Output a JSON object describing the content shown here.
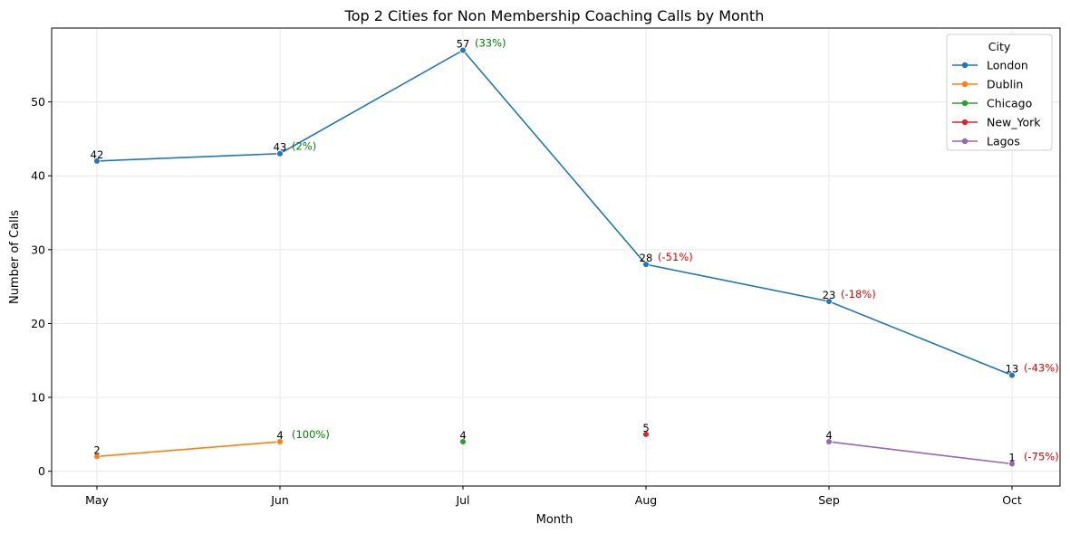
{
  "chart_data": {
    "type": "line",
    "title": "Top 2 Cities for Non Membership Coaching Calls by Month",
    "xlabel": "Month",
    "ylabel": "Number of Calls",
    "categories": [
      "May",
      "Jun",
      "Jul",
      "Aug",
      "Sep",
      "Oct"
    ],
    "yticks": [
      0,
      10,
      20,
      30,
      40,
      50
    ],
    "ylim": [
      -2,
      60
    ],
    "grid": true,
    "legend": {
      "title": "City",
      "position": "top-right"
    },
    "series": [
      {
        "name": "London",
        "color": "#1f77b4",
        "points": [
          {
            "x": "May",
            "y": 42,
            "label": "42",
            "pct": ""
          },
          {
            "x": "Jun",
            "y": 43,
            "label": "43",
            "pct": "(2%)"
          },
          {
            "x": "Jul",
            "y": 57,
            "label": "57",
            "pct": "(33%)"
          },
          {
            "x": "Aug",
            "y": 28,
            "label": "28",
            "pct": "(-51%)"
          },
          {
            "x": "Sep",
            "y": 23,
            "label": "23",
            "pct": "(-18%)"
          },
          {
            "x": "Oct",
            "y": 13,
            "label": "13",
            "pct": "(-43%)"
          }
        ]
      },
      {
        "name": "Dublin",
        "color": "#ff7f0e",
        "points": [
          {
            "x": "May",
            "y": 2,
            "label": "2",
            "pct": ""
          },
          {
            "x": "Jun",
            "y": 4,
            "label": "4",
            "pct": "(100%)"
          }
        ]
      },
      {
        "name": "Chicago",
        "color": "#2ca02c",
        "points": [
          {
            "x": "Jul",
            "y": 4,
            "label": "4",
            "pct": ""
          }
        ]
      },
      {
        "name": "New_York",
        "color": "#d62728",
        "points": [
          {
            "x": "Aug",
            "y": 5,
            "label": "5",
            "pct": ""
          }
        ]
      },
      {
        "name": "Lagos",
        "color": "#9467bd",
        "points": [
          {
            "x": "Sep",
            "y": 4,
            "label": "4",
            "pct": ""
          },
          {
            "x": "Oct",
            "y": 1,
            "label": "1",
            "pct": "(-75%)"
          }
        ]
      }
    ],
    "pct_colors": {
      "positive": "#008000",
      "negative": "#e00000"
    }
  }
}
